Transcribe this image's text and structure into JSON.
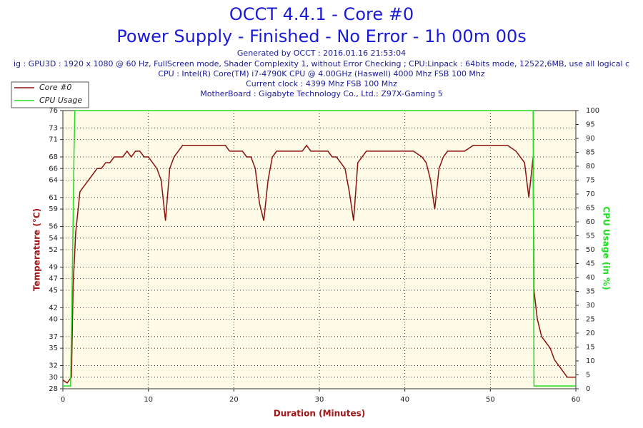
{
  "chart_data": {
    "type": "line",
    "title": "OCCT 4.4.1 - Core #0",
    "subtitle": "Power Supply - Finished - No Error - 1h 00m 00s",
    "info": [
      "Generated by OCCT : 2016.01.16 21:53:04",
      "ig : GPU3D : 1920 x 1080 @ 60 Hz, FullScreen mode, Shader Complexity 1, without Error Checking ; CPU:Linpack : 64bits mode, 12522,6MB, use all logical c",
      "CPU : Intel(R) Core(TM) i7-4790K CPU @ 4.00GHz (Haswell) 4000 Mhz FSB 100 Mhz",
      "Current clock : 4399 Mhz FSB 100 Mhz",
      "MotherBoard : Gigabyte Technology Co., Ltd.: Z97X-Gaming 5"
    ],
    "xlabel": "Duration (Minutes)",
    "ylabel": "Temperature (°C)",
    "y2label": "CPU Usage (in %)",
    "xlim": [
      0,
      60
    ],
    "xticks": [
      0,
      10,
      20,
      30,
      40,
      50,
      60
    ],
    "ylim": [
      28,
      76
    ],
    "yticks": [
      28,
      30,
      32,
      35,
      37,
      40,
      42,
      45,
      47,
      49,
      52,
      54,
      56,
      59,
      61,
      64,
      66,
      68,
      71,
      73,
      76
    ],
    "y2lim": [
      0,
      100
    ],
    "y2ticks": [
      0,
      5,
      10,
      15,
      20,
      25,
      30,
      35,
      40,
      45,
      50,
      55,
      60,
      65,
      70,
      75,
      80,
      85,
      90,
      95,
      100
    ],
    "grid": true,
    "legend": "top-left",
    "series": [
      {
        "name": "Core #0",
        "color": "#8b1010",
        "x": [
          0,
          0.5,
          1,
          1.2,
          1.5,
          2,
          2.5,
          3,
          3.5,
          4,
          4.5,
          5,
          5.5,
          6,
          6.5,
          7,
          7.5,
          8,
          8.5,
          9,
          9.5,
          10,
          10.5,
          11,
          11.5,
          12,
          12.5,
          13,
          13.5,
          14,
          14.5,
          15,
          16,
          17,
          18,
          19,
          19.5,
          20,
          21,
          21.5,
          22,
          22.5,
          23,
          23.5,
          24,
          24.5,
          25,
          26,
          27,
          28,
          28.5,
          29,
          30,
          31,
          31.5,
          32,
          32.5,
          33,
          33.5,
          34,
          34.5,
          35,
          35.5,
          36,
          37,
          38,
          39,
          40,
          41,
          42,
          42.5,
          43,
          43.5,
          44,
          44.5,
          45,
          46,
          47,
          48,
          49,
          50,
          51,
          52,
          53,
          53.5,
          54,
          54.5,
          55,
          55.1,
          55.5,
          56,
          56.5,
          57,
          57.5,
          58,
          58.5,
          59,
          59.5,
          60
        ],
        "values": [
          29.5,
          29,
          30,
          46,
          55,
          62,
          63,
          64,
          65,
          66,
          66,
          67,
          67,
          68,
          68,
          68,
          69,
          68,
          69,
          69,
          68,
          68,
          67,
          66,
          64,
          57,
          66,
          68,
          69,
          70,
          70,
          70,
          70,
          70,
          70,
          70,
          69,
          69,
          69,
          68,
          68,
          66,
          60,
          57,
          64,
          68,
          69,
          69,
          69,
          69,
          70,
          69,
          69,
          69,
          68,
          68,
          67,
          66,
          62,
          57,
          67,
          68,
          69,
          69,
          69,
          69,
          69,
          69,
          69,
          68,
          67,
          64,
          59,
          66,
          68,
          69,
          69,
          69,
          70,
          70,
          70,
          70,
          70,
          69,
          68,
          67,
          61,
          68,
          45,
          40,
          37,
          36,
          35,
          33,
          32,
          31,
          30,
          30,
          30
        ]
      },
      {
        "name": "CPU Usage",
        "color": "#22dd22",
        "axis": "y2",
        "x": [
          0,
          0.9,
          1.1,
          1.3,
          1.4,
          55,
          55.1,
          60
        ],
        "values": [
          1,
          1,
          40,
          85,
          100,
          100,
          1,
          1
        ]
      }
    ]
  }
}
